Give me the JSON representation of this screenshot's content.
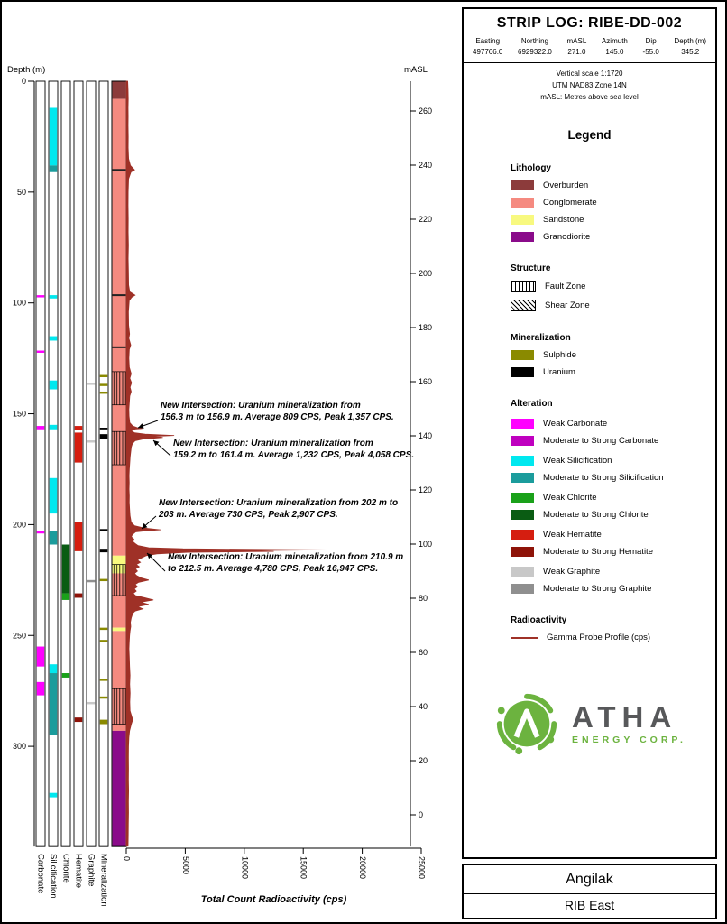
{
  "header": {
    "title": "STRIP LOG: RIBE-DD-002",
    "fields": [
      {
        "label": "Easting",
        "value": "497766.0"
      },
      {
        "label": "Northing",
        "value": "6929322.0"
      },
      {
        "label": "mASL",
        "value": "271.0"
      },
      {
        "label": "Azimuth",
        "value": "145.0"
      },
      {
        "label": "Dip",
        "value": "-55.0"
      },
      {
        "label": "Depth (m)",
        "value": "345.2"
      }
    ],
    "notes": [
      "Vertical scale 1:1720",
      "UTM NAD83 Zone 14N",
      "mASL: Metres above sea level"
    ]
  },
  "legend": {
    "title": "Legend",
    "lithology": {
      "title": "Lithology",
      "items": [
        {
          "label": "Overburden",
          "color": "#8c3b3b"
        },
        {
          "label": "Conglomerate",
          "color": "#f58a80"
        },
        {
          "label": "Sandstone",
          "color": "#f8f97f"
        },
        {
          "label": "Granodiorite",
          "color": "#8a0b8a"
        }
      ]
    },
    "structure": {
      "title": "Structure",
      "items": [
        {
          "label": "Fault Zone",
          "pattern": "vertical-hatch"
        },
        {
          "label": "Shear Zone",
          "pattern": "diagonal-hatch"
        }
      ]
    },
    "mineralization": {
      "title": "Mineralization",
      "items": [
        {
          "label": "Sulphide",
          "color": "#8a8a00"
        },
        {
          "label": "Uranium",
          "color": "#000000"
        }
      ]
    },
    "alteration": {
      "title": "Alteration",
      "groups": [
        {
          "weak": "Weak Carbonate",
          "strong": "Moderate to Strong Carbonate",
          "weak_color": "#ff00ff",
          "strong_color": "#bf00bf"
        },
        {
          "weak": "Weak Silicification",
          "strong": "Moderate to Strong Silicification",
          "weak_color": "#00e8ef",
          "strong_color": "#1b9c9c"
        },
        {
          "weak": "Weak Chlorite",
          "strong": "Moderate to Strong Chlorite",
          "weak_color": "#1aa11a",
          "strong_color": "#0a5c13"
        },
        {
          "weak": "Weak Hematite",
          "strong": "Moderate to Strong Hematite",
          "weak_color": "#d51e10",
          "strong_color": "#8e1309"
        },
        {
          "weak": "Weak Graphite",
          "strong": "Moderate to Strong Graphite",
          "weak_color": "#c8c8c8",
          "strong_color": "#8f8f8f"
        }
      ]
    },
    "radioactivity": {
      "title": "Radioactivity",
      "items": [
        {
          "label": "Gamma Probe Profile (cps)",
          "color": "#9f3127"
        }
      ]
    }
  },
  "logo": {
    "name": "ATHA",
    "subtitle": "ENERGY CORP.",
    "green": "#6cb33f",
    "dark": "#57585a"
  },
  "footer": {
    "project": "Angilak",
    "area": "RIB East"
  },
  "chart_data": {
    "type": "strip-log",
    "depth_axis": {
      "label": "Depth (m)",
      "min": 0,
      "max": 345.2,
      "ticks": [
        0,
        50,
        100,
        150,
        200,
        250,
        300
      ]
    },
    "masl_axis": {
      "label": "mASL",
      "collar_masl": 271.0,
      "ticks": [
        260,
        240,
        220,
        200,
        180,
        160,
        140,
        120,
        100,
        80,
        60,
        40,
        20,
        0
      ]
    },
    "cps_axis": {
      "label": "Total Count Radioactivity (cps)",
      "min": 0,
      "max": 25000,
      "ticks": [
        0,
        5000,
        10000,
        15000,
        20000,
        25000
      ]
    },
    "strip_columns": [
      "Carbonate",
      "Silicification",
      "Chlorite",
      "Hematite",
      "Graphite",
      "Mineralization"
    ],
    "lithology": [
      {
        "from": 0,
        "to": 8,
        "unit": "Overburden"
      },
      {
        "from": 8,
        "to": 214,
        "unit": "Conglomerate"
      },
      {
        "from": 214,
        "to": 222,
        "unit": "Sandstone"
      },
      {
        "from": 222,
        "to": 246.5,
        "unit": "Conglomerate"
      },
      {
        "from": 246.5,
        "to": 248,
        "unit": "Sandstone"
      },
      {
        "from": 248,
        "to": 293,
        "unit": "Conglomerate"
      },
      {
        "from": 293,
        "to": 345.2,
        "unit": "Granodiorite"
      }
    ],
    "contacts": [
      40,
      96.5,
      120
    ],
    "structures": [
      {
        "from": 131,
        "to": 146,
        "type": "Fault Zone"
      },
      {
        "from": 158,
        "to": 173,
        "type": "Fault Zone"
      },
      {
        "from": 218,
        "to": 232,
        "type": "Fault Zone"
      },
      {
        "from": 274,
        "to": 290,
        "type": "Fault Zone"
      }
    ],
    "alteration_intervals": {
      "Carbonate": [
        {
          "from": 96.5,
          "to": 97.5,
          "intensity": "weak"
        },
        {
          "from": 121.5,
          "to": 122.5,
          "intensity": "weak"
        },
        {
          "from": 155.5,
          "to": 157,
          "intensity": "weak"
        },
        {
          "from": 203,
          "to": 204,
          "intensity": "weak"
        },
        {
          "from": 255,
          "to": 264,
          "intensity": "weak"
        },
        {
          "from": 271,
          "to": 277,
          "intensity": "weak"
        }
      ],
      "Silicification": [
        {
          "from": 12,
          "to": 38,
          "intensity": "weak"
        },
        {
          "from": 38,
          "to": 41,
          "intensity": "strong"
        },
        {
          "from": 96.5,
          "to": 98,
          "intensity": "weak"
        },
        {
          "from": 115,
          "to": 117,
          "intensity": "weak"
        },
        {
          "from": 135,
          "to": 139,
          "intensity": "weak"
        },
        {
          "from": 155,
          "to": 157,
          "intensity": "weak"
        },
        {
          "from": 179,
          "to": 195,
          "intensity": "weak"
        },
        {
          "from": 203,
          "to": 209,
          "intensity": "strong"
        },
        {
          "from": 263,
          "to": 267,
          "intensity": "weak"
        },
        {
          "from": 267,
          "to": 295,
          "intensity": "strong"
        },
        {
          "from": 321,
          "to": 323,
          "intensity": "weak"
        }
      ],
      "Chlorite": [
        {
          "from": 209,
          "to": 231,
          "intensity": "strong"
        },
        {
          "from": 231,
          "to": 234,
          "intensity": "weak"
        },
        {
          "from": 267,
          "to": 269,
          "intensity": "weak"
        }
      ],
      "Hematite": [
        {
          "from": 155.5,
          "to": 157.5,
          "intensity": "weak"
        },
        {
          "from": 158.5,
          "to": 172,
          "intensity": "weak"
        },
        {
          "from": 199,
          "to": 212,
          "intensity": "weak"
        },
        {
          "from": 231,
          "to": 233,
          "intensity": "strong"
        },
        {
          "from": 287,
          "to": 289,
          "intensity": "strong"
        }
      ],
      "Graphite": [
        {
          "from": 136,
          "to": 137,
          "intensity": "weak"
        },
        {
          "from": 162,
          "to": 163,
          "intensity": "weak"
        },
        {
          "from": 225,
          "to": 226,
          "intensity": "strong"
        },
        {
          "from": 280,
          "to": 281,
          "intensity": "weak"
        }
      ]
    },
    "mineralization_intervals": [
      {
        "from": 132.5,
        "to": 133.5,
        "type": "Sulphide"
      },
      {
        "from": 136.5,
        "to": 137.5,
        "type": "Sulphide"
      },
      {
        "from": 140,
        "to": 141,
        "type": "Sulphide"
      },
      {
        "from": 156.3,
        "to": 156.9,
        "type": "Uranium"
      },
      {
        "from": 159.2,
        "to": 161.4,
        "type": "Uranium"
      },
      {
        "from": 202,
        "to": 203,
        "type": "Uranium"
      },
      {
        "from": 210.9,
        "to": 212.5,
        "type": "Uranium"
      },
      {
        "from": 224.5,
        "to": 225.5,
        "type": "Sulphide"
      },
      {
        "from": 246.5,
        "to": 247.5,
        "type": "Sulphide"
      },
      {
        "from": 252,
        "to": 253,
        "type": "Sulphide"
      },
      {
        "from": 269.5,
        "to": 270.5,
        "type": "Sulphide"
      },
      {
        "from": 277.5,
        "to": 278.5,
        "type": "Sulphide"
      },
      {
        "from": 288,
        "to": 290,
        "type": "Sulphide"
      }
    ],
    "gamma_profile": {
      "label": "Gamma Probe Profile (cps)",
      "points": [
        [
          0,
          120
        ],
        [
          4,
          150
        ],
        [
          8,
          170
        ],
        [
          12,
          150
        ],
        [
          16,
          160
        ],
        [
          20,
          150
        ],
        [
          25,
          170
        ],
        [
          30,
          160
        ],
        [
          35,
          200
        ],
        [
          38,
          350
        ],
        [
          40,
          700
        ],
        [
          41,
          400
        ],
        [
          44,
          200
        ],
        [
          50,
          160
        ],
        [
          56,
          150
        ],
        [
          62,
          170
        ],
        [
          68,
          160
        ],
        [
          74,
          180
        ],
        [
          80,
          160
        ],
        [
          86,
          180
        ],
        [
          92,
          200
        ],
        [
          95,
          300
        ],
        [
          96.5,
          750
        ],
        [
          97.5,
          450
        ],
        [
          99,
          250
        ],
        [
          104,
          180
        ],
        [
          110,
          200
        ],
        [
          114,
          280
        ],
        [
          116,
          220
        ],
        [
          119,
          380
        ],
        [
          121,
          260
        ],
        [
          125,
          220
        ],
        [
          129,
          260
        ],
        [
          132,
          420
        ],
        [
          134,
          300
        ],
        [
          136,
          450
        ],
        [
          138,
          320
        ],
        [
          140,
          420
        ],
        [
          142,
          300
        ],
        [
          145,
          260
        ],
        [
          148,
          220
        ],
        [
          151,
          240
        ],
        [
          154,
          300
        ],
        [
          155.5,
          550
        ],
        [
          156.3,
          950
        ],
        [
          156.6,
          1357
        ],
        [
          156.9,
          750
        ],
        [
          157.6,
          420
        ],
        [
          158.6,
          700
        ],
        [
          159.2,
          1600
        ],
        [
          159.8,
          4058
        ],
        [
          160.2,
          2400
        ],
        [
          160.7,
          3100
        ],
        [
          161.4,
          1400
        ],
        [
          162.2,
          750
        ],
        [
          163.5,
          520
        ],
        [
          165,
          430
        ],
        [
          167,
          380
        ],
        [
          169.5,
          330
        ],
        [
          172,
          300
        ],
        [
          175,
          260
        ],
        [
          178,
          240
        ],
        [
          181,
          250
        ],
        [
          184,
          240
        ],
        [
          187,
          260
        ],
        [
          190,
          250
        ],
        [
          193,
          280
        ],
        [
          196,
          320
        ],
        [
          199,
          420
        ],
        [
          200.5,
          700
        ],
        [
          201.5,
          1500
        ],
        [
          202.3,
          2907
        ],
        [
          202.8,
          1600
        ],
        [
          203.3,
          800
        ],
        [
          204.5,
          520
        ],
        [
          205.5,
          430
        ],
        [
          206.5,
          650
        ],
        [
          207.5,
          520
        ],
        [
          208.5,
          750
        ],
        [
          209.5,
          1000
        ],
        [
          210.4,
          1900
        ],
        [
          210.9,
          4800
        ],
        [
          211.4,
          16947
        ],
        [
          211.8,
          9500
        ],
        [
          212.1,
          12500
        ],
        [
          212.5,
          5200
        ],
        [
          213.2,
          2600
        ],
        [
          214,
          1700
        ],
        [
          215,
          1300
        ],
        [
          216,
          950
        ],
        [
          217,
          1200
        ],
        [
          218,
          850
        ],
        [
          219,
          1100
        ],
        [
          220,
          780
        ],
        [
          221,
          950
        ],
        [
          222,
          700
        ],
        [
          223,
          880
        ],
        [
          224,
          1250
        ],
        [
          225,
          1900
        ],
        [
          226,
          1050
        ],
        [
          227,
          760
        ],
        [
          228,
          950
        ],
        [
          229,
          680
        ],
        [
          230,
          850
        ],
        [
          231,
          600
        ],
        [
          232,
          780
        ],
        [
          233,
          1600
        ],
        [
          234,
          2300
        ],
        [
          235,
          1250
        ],
        [
          236,
          1900
        ],
        [
          237,
          950
        ],
        [
          238,
          1400
        ],
        [
          239,
          750
        ],
        [
          240,
          550
        ],
        [
          242,
          430
        ],
        [
          244,
          350
        ],
        [
          246,
          380
        ],
        [
          248,
          320
        ],
        [
          250,
          280
        ],
        [
          253,
          250
        ],
        [
          256,
          230
        ],
        [
          260,
          260
        ],
        [
          264,
          280
        ],
        [
          268,
          320
        ],
        [
          272,
          290
        ],
        [
          276,
          330
        ],
        [
          280,
          300
        ],
        [
          284,
          320
        ],
        [
          288,
          550
        ],
        [
          290,
          430
        ],
        [
          293,
          280
        ],
        [
          296,
          220
        ],
        [
          300,
          190
        ],
        [
          305,
          180
        ],
        [
          310,
          190
        ],
        [
          315,
          180
        ],
        [
          320,
          200
        ],
        [
          325,
          180
        ],
        [
          330,
          190
        ],
        [
          335,
          175
        ],
        [
          340,
          165
        ],
        [
          345,
          155
        ]
      ]
    },
    "annotations": [
      {
        "depth_from": 156.3,
        "depth_to": 156.9,
        "line1": "New Intersection: Uranium mineralization from",
        "line2": "156.3 m to 156.9 m. Average 809 CPS, Peak 1,357 CPS."
      },
      {
        "depth_from": 159.2,
        "depth_to": 161.4,
        "line1": "New Intersection: Uranium mineralization from",
        "line2": "159.2 m to 161.4 m. Average 1,232 CPS, Peak 4,058 CPS."
      },
      {
        "depth_from": 202,
        "depth_to": 203,
        "line1": "New Intersection: Uranium mineralization from 202 m to",
        "line2": "203 m. Average 730 CPS, Peak 2,907 CPS."
      },
      {
        "depth_from": 210.9,
        "depth_to": 212.5,
        "line1": "New Intersection: Uranium mineralization from 210.9 m",
        "line2": "to 212.5 m. Average 4,780 CPS, Peak 16,947 CPS."
      }
    ]
  }
}
